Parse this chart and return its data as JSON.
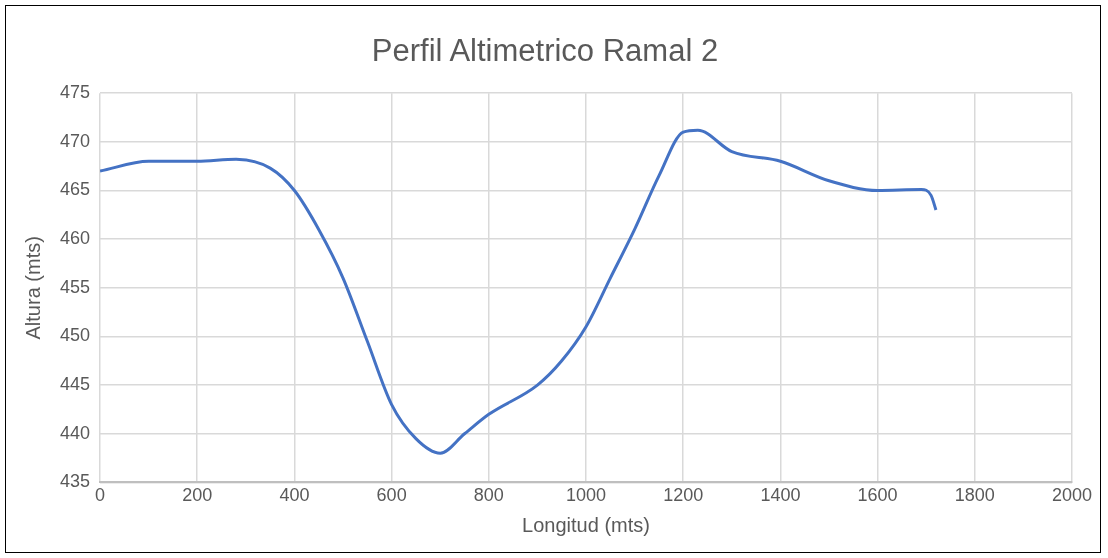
{
  "chart_data": {
    "type": "line",
    "title": "Perfil Altimetrico Ramal 2",
    "xlabel": "Longitud (mts)",
    "ylabel": "Altura (mts)",
    "x": [
      0,
      100,
      200,
      280,
      350,
      400,
      450,
      500,
      550,
      600,
      650,
      700,
      750,
      800,
      900,
      950,
      1000,
      1050,
      1100,
      1150,
      1200,
      1230,
      1300,
      1400,
      1500,
      1600,
      1690,
      1710,
      1720
    ],
    "series": [
      {
        "color": "#4472c4",
        "values": [
          467,
          468,
          468,
          468.2,
          467.3,
          465,
          461,
          456,
          449.5,
          443,
          439.5,
          438,
          440,
          442,
          445,
          447.5,
          451,
          456,
          461,
          466.5,
          471,
          471.2,
          469,
          468,
          466,
          465,
          465.1,
          464.5,
          463
        ]
      }
    ],
    "xlim": [
      0,
      2000
    ],
    "xticks": [
      0,
      200,
      400,
      600,
      800,
      1000,
      1200,
      1400,
      1600,
      1800,
      2000
    ],
    "ylim": [
      435,
      475
    ],
    "yticks": [
      435,
      440,
      445,
      450,
      455,
      460,
      465,
      470,
      475
    ],
    "grid": true,
    "legend": false,
    "marker": "none",
    "line_style": "solid"
  }
}
